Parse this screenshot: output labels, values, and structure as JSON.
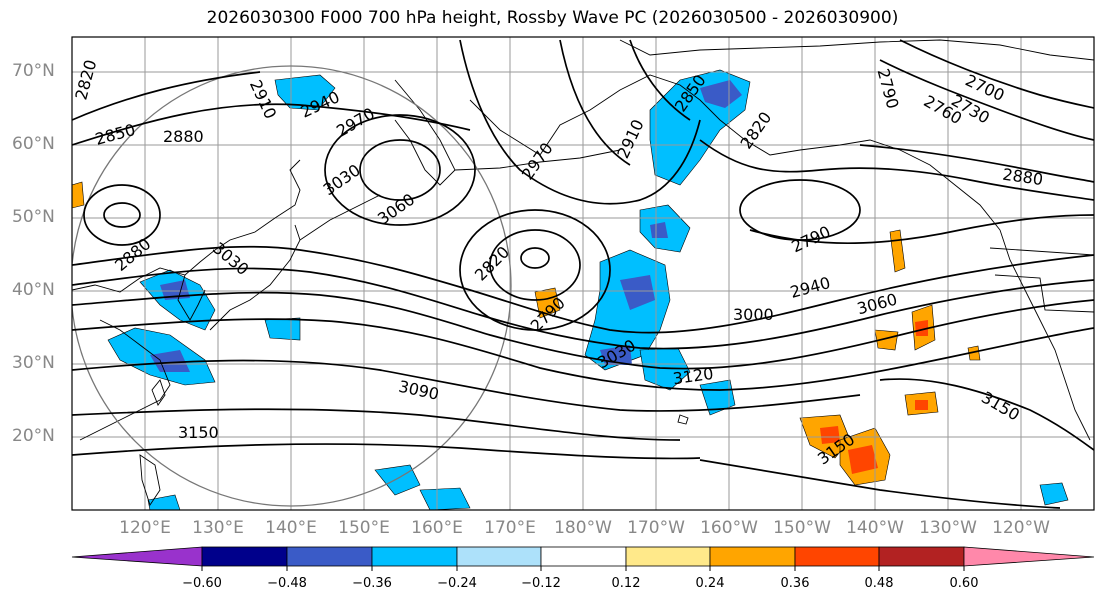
{
  "title": "2026030300 F000 700 hPa height, Rossby Wave PC (2026030500 - 2026030900)",
  "latitude_labels": [
    "70°N",
    "60°N",
    "50°N",
    "40°N",
    "30°N",
    "20°N"
  ],
  "longitude_labels": [
    "120°E",
    "130°E",
    "140°E",
    "150°E",
    "160°E",
    "170°E",
    "180°W",
    "170°W",
    "160°W",
    "150°W",
    "140°W",
    "130°W",
    "120°W"
  ],
  "colorbar": {
    "ticks": [
      "−0.60",
      "−0.48",
      "−0.36",
      "−0.24",
      "−0.12",
      "0.12",
      "0.24",
      "0.36",
      "0.48",
      "0.60"
    ],
    "colors": [
      "#9932CC",
      "#00008B",
      "#3A5BC7",
      "#00BFFF",
      "#ADE1FA",
      "#FFFFFF",
      "#FFE98A",
      "#FFA500",
      "#FF4500",
      "#B22222",
      "#FF88AA"
    ]
  },
  "contour_labels": [
    "2820",
    "2910",
    "2940",
    "2970",
    "2850",
    "2880",
    "3030",
    "3060",
    "2880",
    "3030",
    "2820",
    "2790",
    "2970",
    "2910",
    "2850",
    "2820",
    "2790",
    "2760",
    "2730",
    "2700",
    "2880",
    "2790",
    "2940",
    "3000",
    "3060",
    "3030",
    "3120",
    "3090",
    "3150",
    "3150",
    "3150"
  ],
  "colors": {
    "contour": "#000000",
    "grid": "#9a9a9a",
    "axis_text": "#888888",
    "coast": "#000000",
    "circle": "#777777"
  }
}
